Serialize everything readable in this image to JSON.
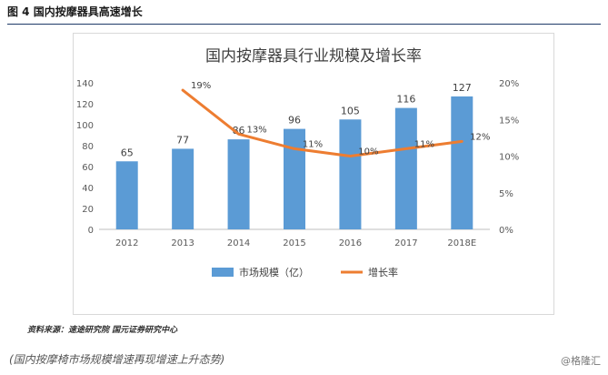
{
  "figure": {
    "header": "图 4  国内按摩器具高速增长",
    "source": "资料来源：速途研究院  国元证券研究中心",
    "caption": "(国内按摩椅市场规模增速再现增速上升态势)",
    "watermark": "@格隆汇"
  },
  "chart_data": {
    "type": "bar",
    "title": "国内按摩器具行业规模及增长率",
    "categories": [
      "2012",
      "2013",
      "2014",
      "2015",
      "2016",
      "2017",
      "2018E"
    ],
    "series": [
      {
        "name": "市场规模（亿）",
        "type": "bar",
        "axis": "left",
        "values": [
          65,
          77,
          86,
          96,
          105,
          116,
          127
        ],
        "labels": [
          "65",
          "77",
          "86",
          "96",
          "105",
          "116",
          "127"
        ],
        "color": "#5b9bd5"
      },
      {
        "name": "增长率",
        "type": "line",
        "axis": "right",
        "values": [
          null,
          19,
          13,
          11,
          10,
          11,
          12
        ],
        "labels": [
          "",
          "19%",
          "13%",
          "11%",
          "10%",
          "11%",
          "12%"
        ],
        "color": "#ed7d31"
      }
    ],
    "y_left": {
      "min": 0,
      "max": 140,
      "step": 20,
      "ticks": [
        "0",
        "20",
        "40",
        "60",
        "80",
        "100",
        "120",
        "140"
      ]
    },
    "y_right": {
      "min": 0,
      "max": 20,
      "step": 5,
      "ticks": [
        "0%",
        "5%",
        "10%",
        "15%",
        "20%"
      ]
    },
    "grid": false,
    "legend": "bottom"
  }
}
